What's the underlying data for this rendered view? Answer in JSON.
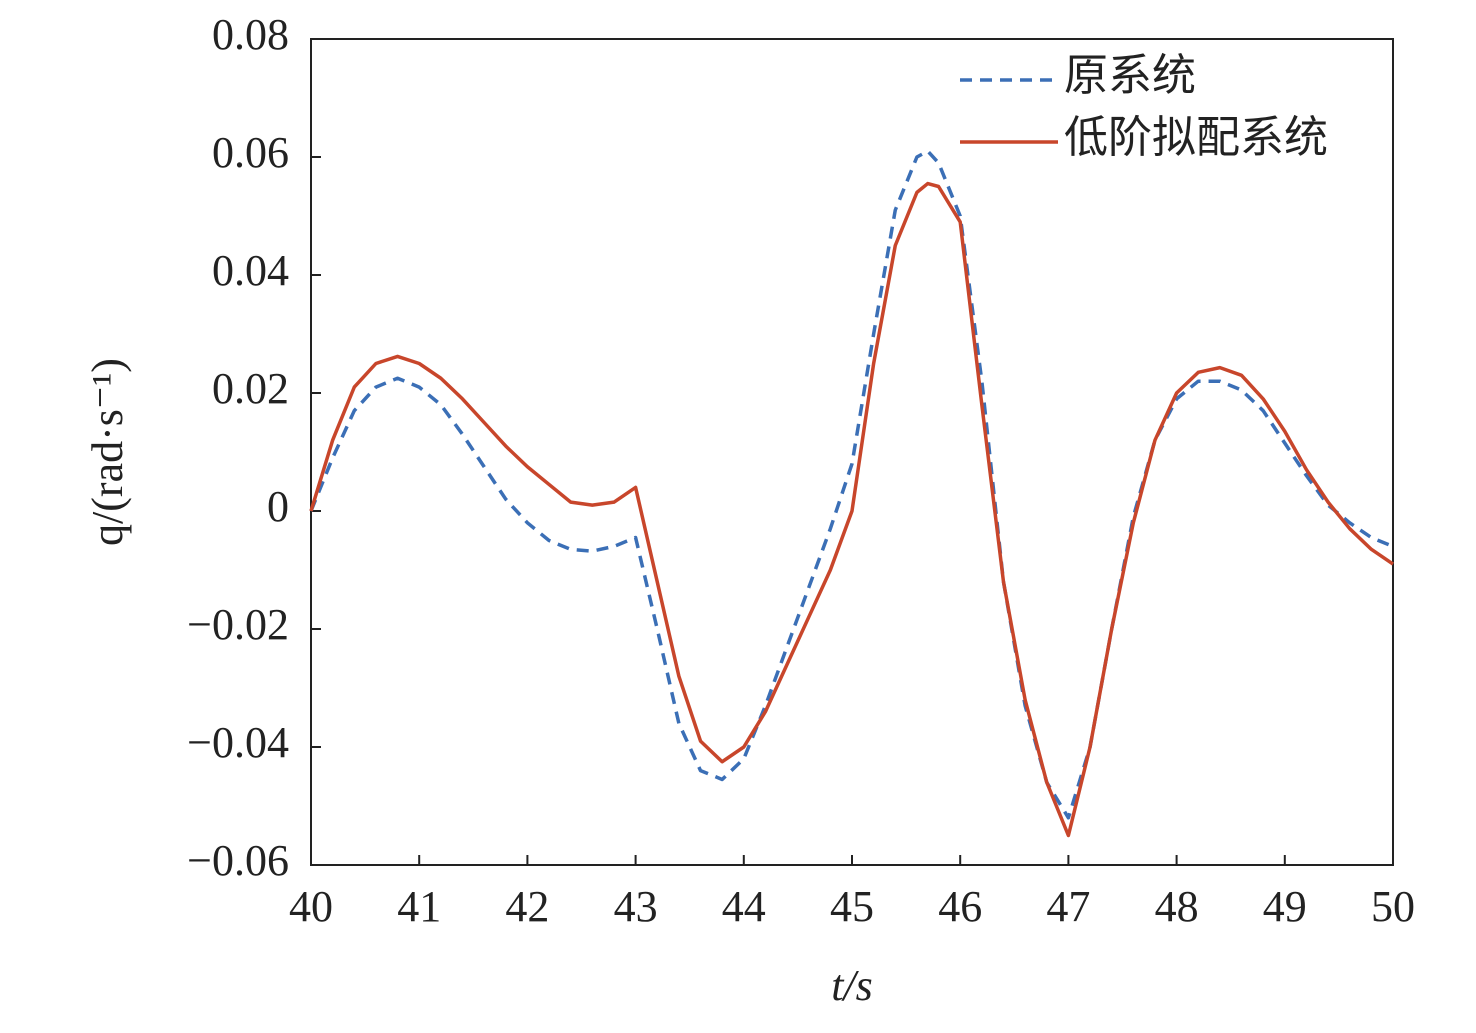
{
  "chart_data": {
    "type": "line",
    "x_label": "t/s",
    "y_label": "q/(rad·s⁻¹)",
    "x": [
      40,
      40.2,
      40.4,
      40.6,
      40.8,
      41,
      41.2,
      41.4,
      41.6,
      41.8,
      42,
      42.2,
      42.4,
      42.6,
      42.8,
      43,
      43.2,
      43.4,
      43.6,
      43.8,
      44,
      44.2,
      44.4,
      44.6,
      44.8,
      45,
      45.2,
      45.4,
      45.6,
      45.7,
      45.8,
      46,
      46.2,
      46.4,
      46.6,
      46.8,
      47,
      47.2,
      47.4,
      47.6,
      47.8,
      48,
      48.2,
      48.4,
      48.6,
      48.8,
      49,
      49.2,
      49.4,
      49.6,
      49.8,
      50
    ],
    "series": [
      {
        "name": "原系统",
        "color": "#3b6fb6",
        "dashed": true,
        "values": [
          0,
          0.009,
          0.017,
          0.021,
          0.0225,
          0.021,
          0.018,
          0.013,
          0.0075,
          0.002,
          -0.002,
          -0.005,
          -0.0065,
          -0.0068,
          -0.006,
          -0.0045,
          -0.02,
          -0.036,
          -0.044,
          -0.0455,
          -0.042,
          -0.033,
          -0.023,
          -0.013,
          -0.003,
          0.008,
          0.03,
          0.051,
          0.06,
          0.061,
          0.059,
          0.05,
          0.022,
          -0.012,
          -0.033,
          -0.046,
          -0.052,
          -0.04,
          -0.02,
          -0.001,
          0.012,
          0.019,
          0.022,
          0.022,
          0.0205,
          0.017,
          0.0115,
          0.006,
          0.001,
          -0.002,
          -0.0045,
          -0.006
        ]
      },
      {
        "name": "低阶拟配系统",
        "color": "#c8462b",
        "dashed": false,
        "values": [
          0,
          0.012,
          0.021,
          0.025,
          0.0262,
          0.025,
          0.0225,
          0.019,
          0.015,
          0.011,
          0.0075,
          0.0045,
          0.0015,
          0.001,
          0.0015,
          0.004,
          -0.012,
          -0.028,
          -0.039,
          -0.0425,
          -0.04,
          -0.034,
          -0.026,
          -0.018,
          -0.01,
          0,
          0.025,
          0.045,
          0.054,
          0.0555,
          0.055,
          0.049,
          0.018,
          -0.012,
          -0.032,
          -0.046,
          -0.055,
          -0.04,
          -0.02,
          -0.002,
          0.012,
          0.02,
          0.0235,
          0.0243,
          0.023,
          0.019,
          0.0135,
          0.007,
          0.0015,
          -0.003,
          -0.0065,
          -0.009
        ]
      }
    ],
    "xlim": [
      40,
      50
    ],
    "xticks": [
      40,
      41,
      42,
      43,
      44,
      45,
      46,
      47,
      48,
      49,
      50
    ],
    "ylim": [
      -0.06,
      0.08
    ],
    "yticks": [
      {
        "value": -0.06,
        "label": "−0.06"
      },
      {
        "value": -0.04,
        "label": "−0.04"
      },
      {
        "value": -0.02,
        "label": "−0.02"
      },
      0,
      0.02,
      0.04,
      0.06,
      0.08
    ],
    "legend": "upper right"
  }
}
